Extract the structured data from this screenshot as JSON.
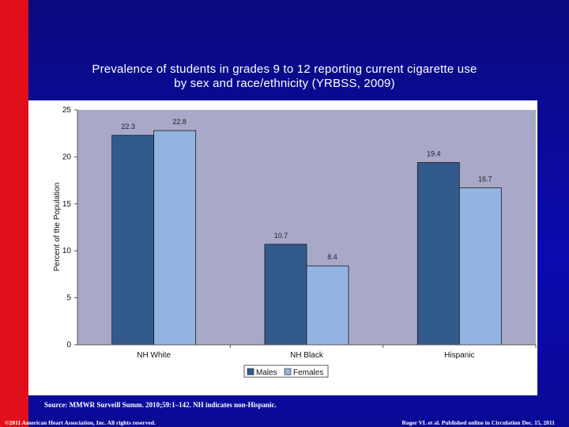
{
  "slide": {
    "title_line1": "Prevalence of students in grades 9 to 12 reporting current cigarette use",
    "title_line2": "by sex and race/ethnicity (YRBSS, 2009)",
    "source": "Source: MMWR Surveill Summ. 2010;59:1–142. NH indicates non-Hispanic.",
    "copyright": "©2011 American Heart Association, Inc. All rights reserved.",
    "citation": "Roger VL et al. Published online in Circulation Dec. 15, 2011"
  },
  "colors": {
    "background": "#0a0a8c",
    "left_band": "#e0101a",
    "plot_area": "#a8a8c8",
    "males": "#335a8c",
    "females": "#92b4e2"
  },
  "chart_data": {
    "type": "bar",
    "title": "Prevalence of students in grades 9 to 12 reporting current cigarette use by sex and race/ethnicity (YRBSS, 2009)",
    "ylabel": "Percent of the Population",
    "xlabel": "",
    "categories": [
      "NH White",
      "NH Black",
      "Hispanic"
    ],
    "series": [
      {
        "name": "Males",
        "values": [
          22.3,
          10.7,
          19.4
        ]
      },
      {
        "name": "Females",
        "values": [
          22.8,
          8.4,
          16.7
        ]
      }
    ],
    "ylim": [
      0,
      25
    ],
    "yticks": [
      0,
      5,
      10,
      15,
      20,
      25
    ],
    "data_labels": true,
    "grid": false,
    "legend": "bottom"
  }
}
